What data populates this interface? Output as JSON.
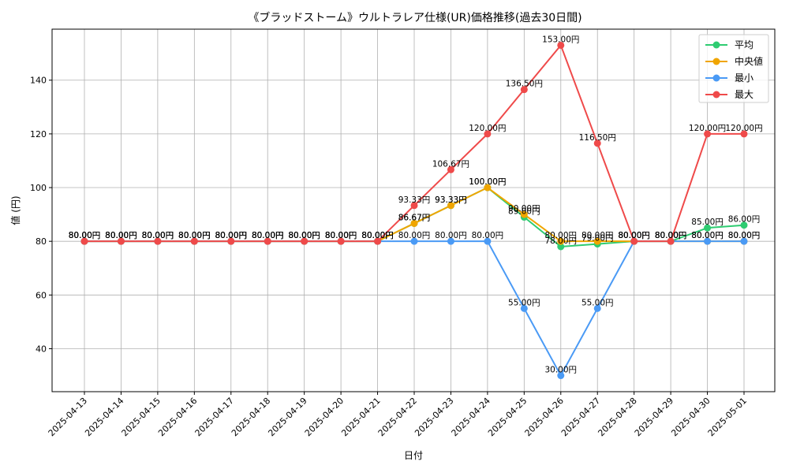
{
  "chart_data": {
    "type": "line",
    "title": "《ブラッドストーム》ウルトラレア仕様(UR)価格推移(過去30日間)",
    "xlabel": "日付",
    "ylabel": "値 (円)",
    "ylim": [
      24,
      159
    ],
    "yticks": [
      40,
      60,
      80,
      100,
      120,
      140
    ],
    "grid": true,
    "legend_position": "top-right",
    "value_suffix": "円",
    "x": [
      "2025-04-13",
      "2025-04-14",
      "2025-04-15",
      "2025-04-16",
      "2025-04-17",
      "2025-04-18",
      "2025-04-19",
      "2025-04-20",
      "2025-04-21",
      "2025-04-22",
      "2025-04-23",
      "2025-04-24",
      "2025-04-25",
      "2025-04-26",
      "2025-04-27",
      "2025-04-28",
      "2025-04-29",
      "2025-04-30",
      "2025-05-01"
    ],
    "series": [
      {
        "name": "平均",
        "color": "#2ecc71",
        "values": [
          80,
          80,
          80,
          80,
          80,
          80,
          80,
          80,
          80,
          86.67,
          93.33,
          100,
          89,
          78,
          79,
          80,
          80,
          85,
          86
        ]
      },
      {
        "name": "中央値",
        "color": "#f0a500",
        "values": [
          80,
          80,
          80,
          80,
          80,
          80,
          80,
          80,
          80,
          86.67,
          93.33,
          100,
          90,
          80,
          80,
          80,
          80,
          80,
          80
        ]
      },
      {
        "name": "最小",
        "color": "#4a9af5",
        "values": [
          80,
          80,
          80,
          80,
          80,
          80,
          80,
          80,
          80,
          80,
          80,
          80,
          55,
          30,
          55,
          80,
          80,
          80,
          80
        ]
      },
      {
        "name": "最大",
        "color": "#ef4a4a",
        "values": [
          80,
          80,
          80,
          80,
          80,
          80,
          80,
          80,
          80,
          93.33,
          106.67,
          120,
          136.5,
          153,
          116.5,
          80,
          80,
          120,
          120
        ]
      }
    ]
  }
}
